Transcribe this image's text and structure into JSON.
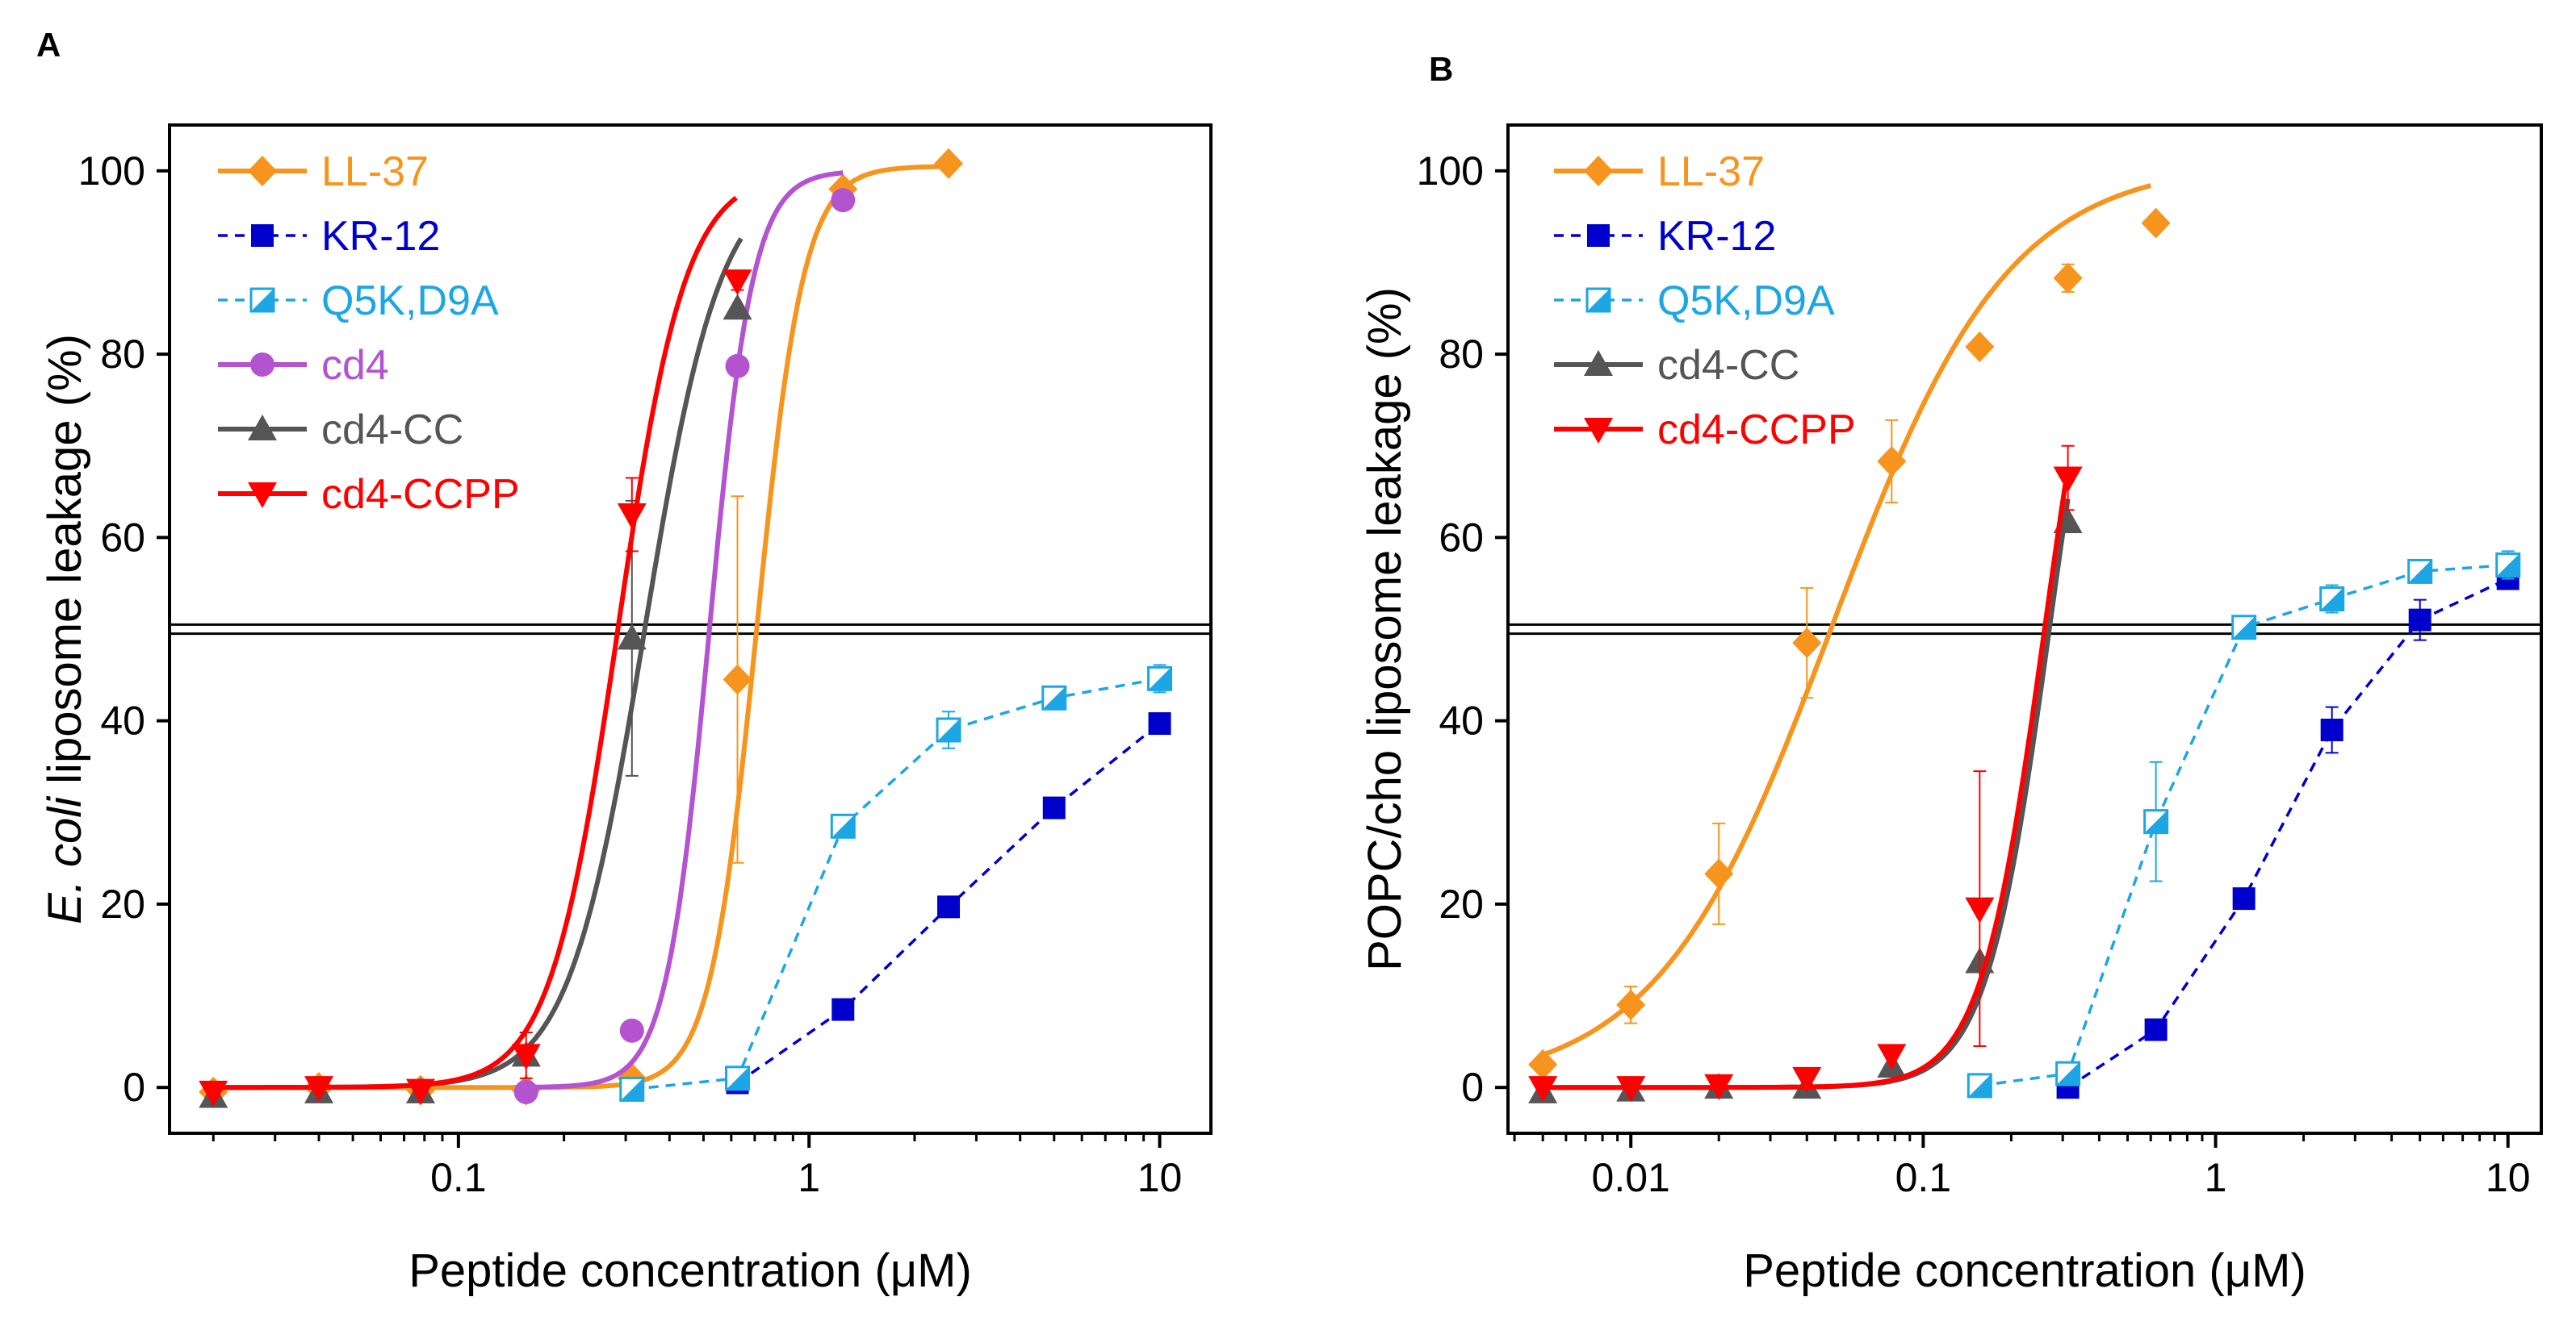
{
  "panels": [
    {
      "label": "A",
      "xlabel": "Peptide concentration (μM)",
      "ylabel_italic": "E. coli",
      "ylabel_rest": " liposome leakage (%)",
      "chart_data": {
        "type": "scatter",
        "xscale": "log",
        "xlim": [
          0.015,
          14
        ],
        "ylim": [
          -5,
          105
        ],
        "xticks": [
          0.1,
          1,
          10
        ],
        "xtick_labels": [
          "0.1",
          "1",
          "10"
        ],
        "yticks": [
          0,
          20,
          40,
          60,
          80,
          100
        ],
        "ytick_labels": [
          "0",
          "20",
          "40",
          "60",
          "80",
          "100"
        ],
        "reference_lines_y": [
          49.5,
          50.5
        ],
        "legend_position": "top-left",
        "series": [
          {
            "name": "LL-37",
            "color": "#F7941D",
            "marker": "diamond",
            "line": "solid-fit",
            "x": [
              0.02,
              0.04,
              0.078,
              0.156,
              0.3125,
              0.625,
              1.25,
              2.5
            ],
            "y": [
              -0.5,
              0,
              -0.3,
              -0.3,
              1,
              44.5,
              98,
              100.8
            ],
            "err": [
              0,
              0,
              0,
              0,
              0,
              20,
              0,
              0
            ],
            "fit": {
              "ec50": 0.71,
              "hill": 6.5,
              "top": 100.5
            }
          },
          {
            "name": "KR-12",
            "color": "#0000CD",
            "marker": "square",
            "line": "dashed",
            "x": [
              0.625,
              1.25,
              2.5,
              5,
              10
            ],
            "y": [
              0.5,
              8.5,
              19.7,
              30.5,
              39.7
            ],
            "err": [
              0,
              0,
              0,
              0,
              0
            ]
          },
          {
            "name": "Q5K,D9A",
            "color": "#1CA6E4",
            "marker": "half-square",
            "line": "dashed",
            "x": [
              0.3125,
              0.625,
              1.25,
              2.5,
              5,
              10
            ],
            "y": [
              -0.2,
              1,
              28.5,
              39,
              42.5,
              44.6
            ],
            "err": [
              0,
              0,
              0,
              2,
              1,
              1.5
            ]
          },
          {
            "name": "cd4",
            "color": "#B453D0",
            "marker": "circle",
            "line": "solid-fit",
            "x": [
              0.156,
              0.3125,
              0.625,
              1.25
            ],
            "y": [
              -0.5,
              6.2,
              78.7,
              96.8
            ],
            "err": [
              0,
              0,
              0,
              0
            ],
            "fit": {
              "ec50": 0.52,
              "hill": 7,
              "top": 100
            }
          },
          {
            "name": "cd4-CC",
            "color": "#555555",
            "marker": "triangle-up",
            "line": "solid-fit",
            "x": [
              0.02,
              0.04,
              0.078,
              0.156,
              0.3125,
              0.625
            ],
            "y": [
              -1,
              -0.5,
              -0.5,
              3.5,
              49,
              85
            ],
            "err": [
              0,
              0,
              0,
              0,
              15,
              0
            ],
            "fit": {
              "ec50": 0.34,
              "hill": 4,
              "top": 100,
              "xmax": 0.64
            }
          },
          {
            "name": "cd4-CCPP",
            "color": "#FF0000",
            "marker": "triangle-down",
            "line": "solid-fit",
            "x": [
              0.02,
              0.04,
              0.078,
              0.156,
              0.3125,
              0.625
            ],
            "y": [
              -0.5,
              0,
              -0.3,
              3.5,
              62.5,
              88
            ],
            "err": [
              0,
              0,
              0,
              2.5,
              4,
              1
            ],
            "fit": {
              "ec50": 0.285,
              "hill": 4.5,
              "top": 100,
              "xmax": 0.62
            }
          }
        ]
      }
    },
    {
      "label": "B",
      "xlabel": "Peptide concentration (μM)",
      "ylabel_italic": "",
      "ylabel_rest": "POPC/cho liposome leakage (%)",
      "chart_data": {
        "type": "scatter",
        "xscale": "log",
        "xlim": [
          0.0038,
          13
        ],
        "ylim": [
          -5,
          105
        ],
        "xticks": [
          0.01,
          0.1,
          1,
          10
        ],
        "xtick_labels": [
          "0.01",
          "0.1",
          "1",
          "10"
        ],
        "yticks": [
          0,
          20,
          40,
          60,
          80,
          100
        ],
        "ytick_labels": [
          "0",
          "20",
          "40",
          "60",
          "80",
          "100"
        ],
        "reference_lines_y": [
          49.5,
          50.5
        ],
        "legend_position": "top-left",
        "series": [
          {
            "name": "LL-37",
            "color": "#F7941D",
            "marker": "diamond",
            "line": "solid-fit",
            "x": [
              0.005,
              0.01,
              0.02,
              0.04,
              0.078,
              0.156,
              0.3125,
              0.625
            ],
            "y": [
              2.5,
              9,
              23.3,
              48.5,
              68.3,
              80.8,
              88.3,
              94.3
            ],
            "err": [
              0,
              2,
              5.5,
              6,
              4.5,
              0,
              1.5,
              0
            ],
            "fit": {
              "ec50": 0.049,
              "hill": 1.45,
              "top": 101,
              "xmin": 0.005,
              "xmax": 0.6
            }
          },
          {
            "name": "KR-12",
            "color": "#0000CD",
            "marker": "square",
            "line": "dashed",
            "x": [
              0.3125,
              0.625,
              1.25,
              2.5,
              5,
              10
            ],
            "y": [
              0,
              6.3,
              20.6,
              39,
              51,
              55.5
            ],
            "err": [
              0,
              0,
              0,
              2.5,
              2.2,
              1
            ]
          },
          {
            "name": "Q5K,D9A",
            "color": "#1CA6E4",
            "marker": "half-square",
            "line": "dashed",
            "x": [
              0.156,
              0.3125,
              0.625,
              1.25,
              2.5,
              5,
              10
            ],
            "y": [
              0.2,
              1.5,
              29,
              50.2,
              53.3,
              56.3,
              57
            ],
            "err": [
              0,
              0,
              6.5,
              1,
              1.5,
              0,
              1.5
            ]
          },
          {
            "name": "cd4-CC",
            "color": "#555555",
            "marker": "triangle-up",
            "line": "solid-fit",
            "x": [
              0.005,
              0.01,
              0.02,
              0.04,
              0.078,
              0.156,
              0.3125
            ],
            "y": [
              -0.5,
              -0.3,
              0,
              0,
              2.3,
              13.7,
              61.7
            ],
            "err": [
              0,
              0,
              0,
              0,
              0,
              0,
              0
            ],
            "fit": {
              "ec50": 0.27,
              "hill": 4,
              "top": 100,
              "xmin": 0.005,
              "xmax": 0.3125
            }
          },
          {
            "name": "cd4-CCPP",
            "color": "#FF0000",
            "marker": "triangle-down",
            "line": "solid-fit",
            "x": [
              0.005,
              0.01,
              0.02,
              0.04,
              0.078,
              0.156,
              0.3125
            ],
            "y": [
              0,
              0,
              0.2,
              1,
              3.5,
              19.5,
              66.5
            ],
            "err": [
              0,
              0,
              0,
              0,
              0,
              15,
              3.5
            ],
            "fit": {
              "ec50": 0.26,
              "hill": 4,
              "top": 100,
              "xmin": 0.005,
              "xmax": 0.3125
            }
          }
        ]
      }
    }
  ]
}
